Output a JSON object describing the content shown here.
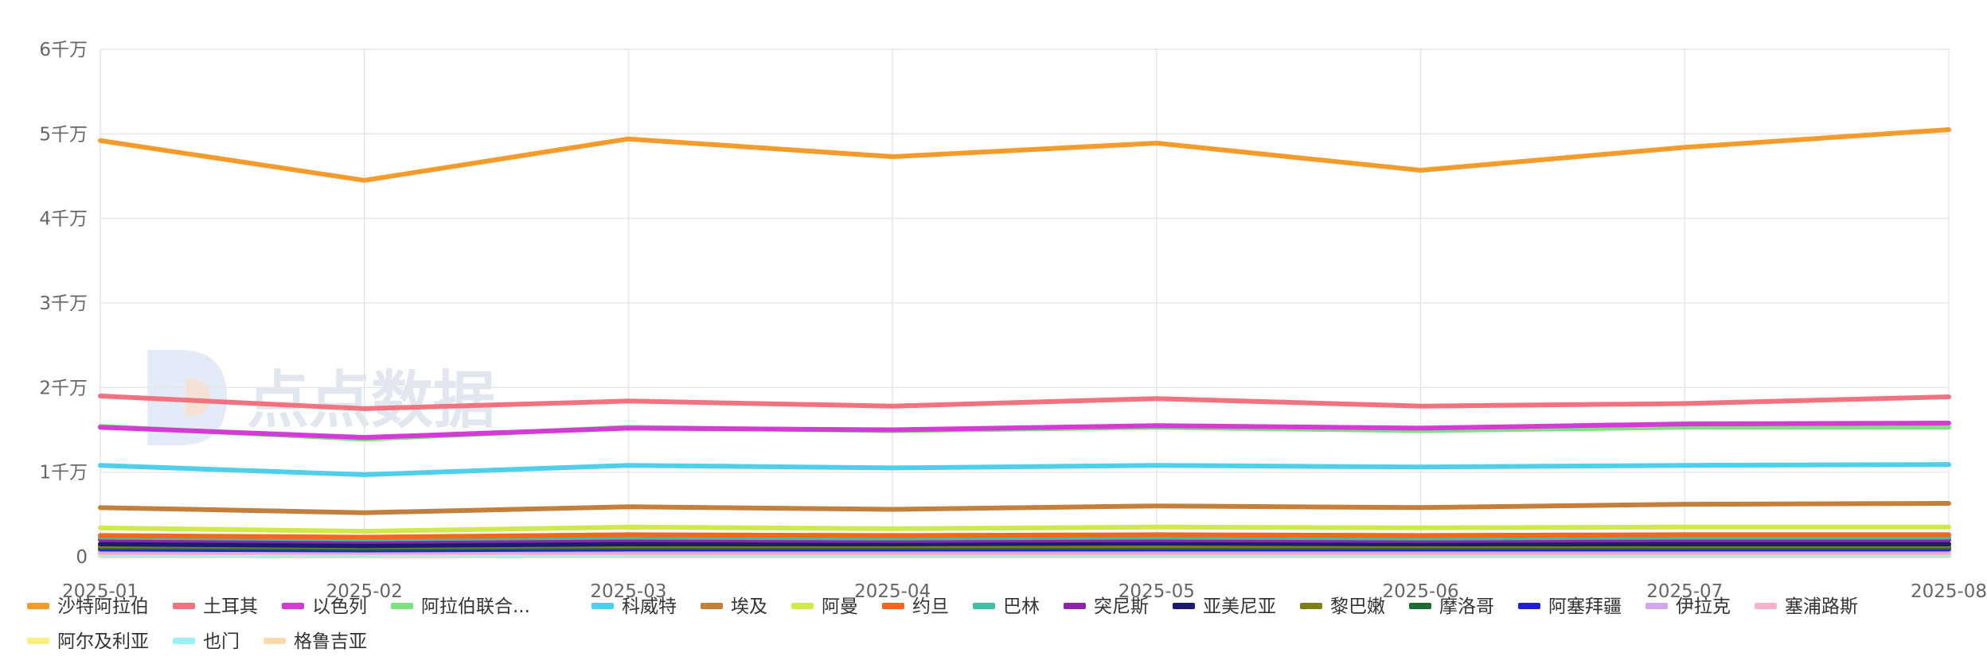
{
  "watermark": "点点数据",
  "chart_data": {
    "type": "line",
    "x": [
      "2025-01",
      "2025-02",
      "2025-03",
      "2025-04",
      "2025-05",
      "2025-06",
      "2025-07",
      "2025-08"
    ],
    "yticks": [
      "0",
      "1千万",
      "2千万",
      "3千万",
      "4千万",
      "5千万",
      "6千万"
    ],
    "ylim": [
      0,
      60000000
    ],
    "grid": true,
    "legend_position": "bottom",
    "series": [
      {
        "name": "沙特阿拉伯",
        "color": "#f49b2b",
        "values": [
          49200000,
          44500000,
          49400000,
          47300000,
          48900000,
          45700000,
          48400000,
          50500000
        ]
      },
      {
        "name": "土耳其",
        "color": "#f2727f",
        "values": [
          19000000,
          17500000,
          18400000,
          17800000,
          18700000,
          17800000,
          18100000,
          18900000
        ]
      },
      {
        "name": "以色列",
        "color": "#d63ad6",
        "values": [
          15300000,
          14100000,
          15200000,
          15000000,
          15500000,
          15200000,
          15700000,
          15800000
        ]
      },
      {
        "name": "阿拉伯联合...",
        "color": "#7ee07e",
        "values": [
          15400000,
          13900000,
          15300000,
          14900000,
          15300000,
          14900000,
          15300000,
          15300000
        ]
      },
      {
        "name": "科威特",
        "color": "#4ecfea",
        "values": [
          10800000,
          9700000,
          10800000,
          10500000,
          10800000,
          10600000,
          10800000,
          10900000
        ]
      },
      {
        "name": "埃及",
        "color": "#c47f3a",
        "values": [
          5800000,
          5200000,
          5900000,
          5600000,
          6000000,
          5800000,
          6200000,
          6300000
        ]
      },
      {
        "name": "阿曼",
        "color": "#cfe94a",
        "values": [
          3400000,
          3000000,
          3500000,
          3300000,
          3500000,
          3400000,
          3500000,
          3500000
        ]
      },
      {
        "name": "约旦",
        "color": "#f4671e",
        "values": [
          2500000,
          2300000,
          2600000,
          2500000,
          2600000,
          2500000,
          2600000,
          2600000
        ]
      },
      {
        "name": "巴林",
        "color": "#3fbfa5",
        "values": [
          2300000,
          2100000,
          2300000,
          2200000,
          2300000,
          2200000,
          2300000,
          2300000
        ]
      },
      {
        "name": "突尼斯",
        "color": "#8e24aa",
        "values": [
          2000000,
          1800000,
          2000000,
          1900000,
          2000000,
          1900000,
          2000000,
          2000000
        ]
      },
      {
        "name": "亚美尼亚",
        "color": "#1a1a6e",
        "values": [
          1500000,
          1300000,
          1500000,
          1500000,
          1600000,
          1500000,
          1500000,
          1500000
        ]
      },
      {
        "name": "黎巴嫩",
        "color": "#7f7f1a",
        "values": [
          1300000,
          1200000,
          1300000,
          1300000,
          1300000,
          1300000,
          1300000,
          1300000
        ]
      },
      {
        "name": "摩洛哥",
        "color": "#1f6b35",
        "values": [
          1100000,
          1000000,
          1100000,
          1100000,
          1100000,
          1100000,
          1100000,
          1100000
        ]
      },
      {
        "name": "阿塞拜疆",
        "color": "#2020d0",
        "values": [
          900000,
          800000,
          900000,
          900000,
          900000,
          900000,
          900000,
          900000
        ]
      },
      {
        "name": "伊拉克",
        "color": "#d4a6f2",
        "values": [
          700000,
          600000,
          700000,
          700000,
          700000,
          700000,
          700000,
          700000
        ]
      },
      {
        "name": "塞浦路斯",
        "color": "#f7b3c8",
        "values": [
          500000,
          450000,
          500000,
          500000,
          500000,
          500000,
          500000,
          500000
        ]
      },
      {
        "name": "阿尔及利亚",
        "color": "#f7ef7e",
        "values": [
          400000,
          350000,
          400000,
          400000,
          400000,
          400000,
          400000,
          400000
        ]
      },
      {
        "name": "也门",
        "color": "#9af2f2",
        "values": [
          250000,
          220000,
          250000,
          250000,
          250000,
          250000,
          250000,
          250000
        ]
      },
      {
        "name": "格鲁吉亚",
        "color": "#fcd9b0",
        "values": [
          100000,
          90000,
          100000,
          100000,
          100000,
          100000,
          100000,
          100000
        ]
      }
    ]
  }
}
